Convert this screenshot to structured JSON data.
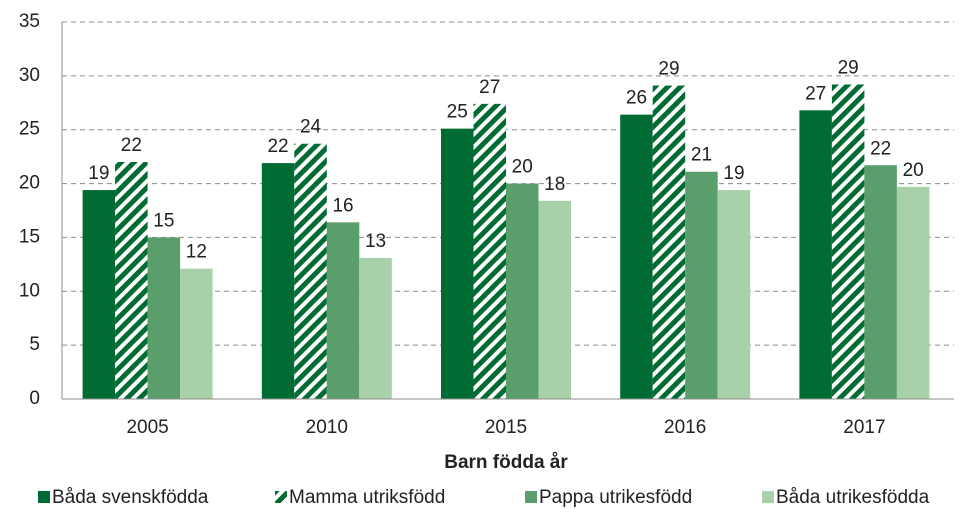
{
  "chart_data": {
    "type": "bar",
    "x_label": "Barn födda år",
    "categories": [
      "2005",
      "2010",
      "2015",
      "2016",
      "2017"
    ],
    "series": [
      {
        "name": "Båda svenskfödda",
        "color": "#006b32",
        "values": [
          19.4,
          21.9,
          25.1,
          26.4,
          26.8
        ],
        "value_labels": [
          "19",
          "22",
          "25",
          "26",
          "27"
        ]
      },
      {
        "name": "Mamma utriksfödd",
        "color": "#006b32",
        "pattern": "hatch",
        "values": [
          22.0,
          23.7,
          27.4,
          29.1,
          29.2
        ],
        "value_labels": [
          "22",
          "24",
          "27",
          "29",
          "29"
        ]
      },
      {
        "name": "Pappa utrikesfödd",
        "color": "#5a9e6b",
        "values": [
          15.0,
          16.4,
          20.0,
          21.1,
          21.7
        ],
        "value_labels": [
          "15",
          "16",
          "20",
          "21",
          "22"
        ]
      },
      {
        "name": "Båda utrikesfödda",
        "color": "#a8d1a9",
        "values": [
          12.1,
          13.1,
          18.4,
          19.4,
          19.7
        ],
        "value_labels": [
          "12",
          "13",
          "18",
          "19",
          "20"
        ]
      }
    ],
    "ylim": [
      0,
      35
    ],
    "yticks": [
      0,
      5,
      10,
      15,
      20,
      25,
      30,
      35
    ],
    "grid": true,
    "legend": "bottom"
  }
}
